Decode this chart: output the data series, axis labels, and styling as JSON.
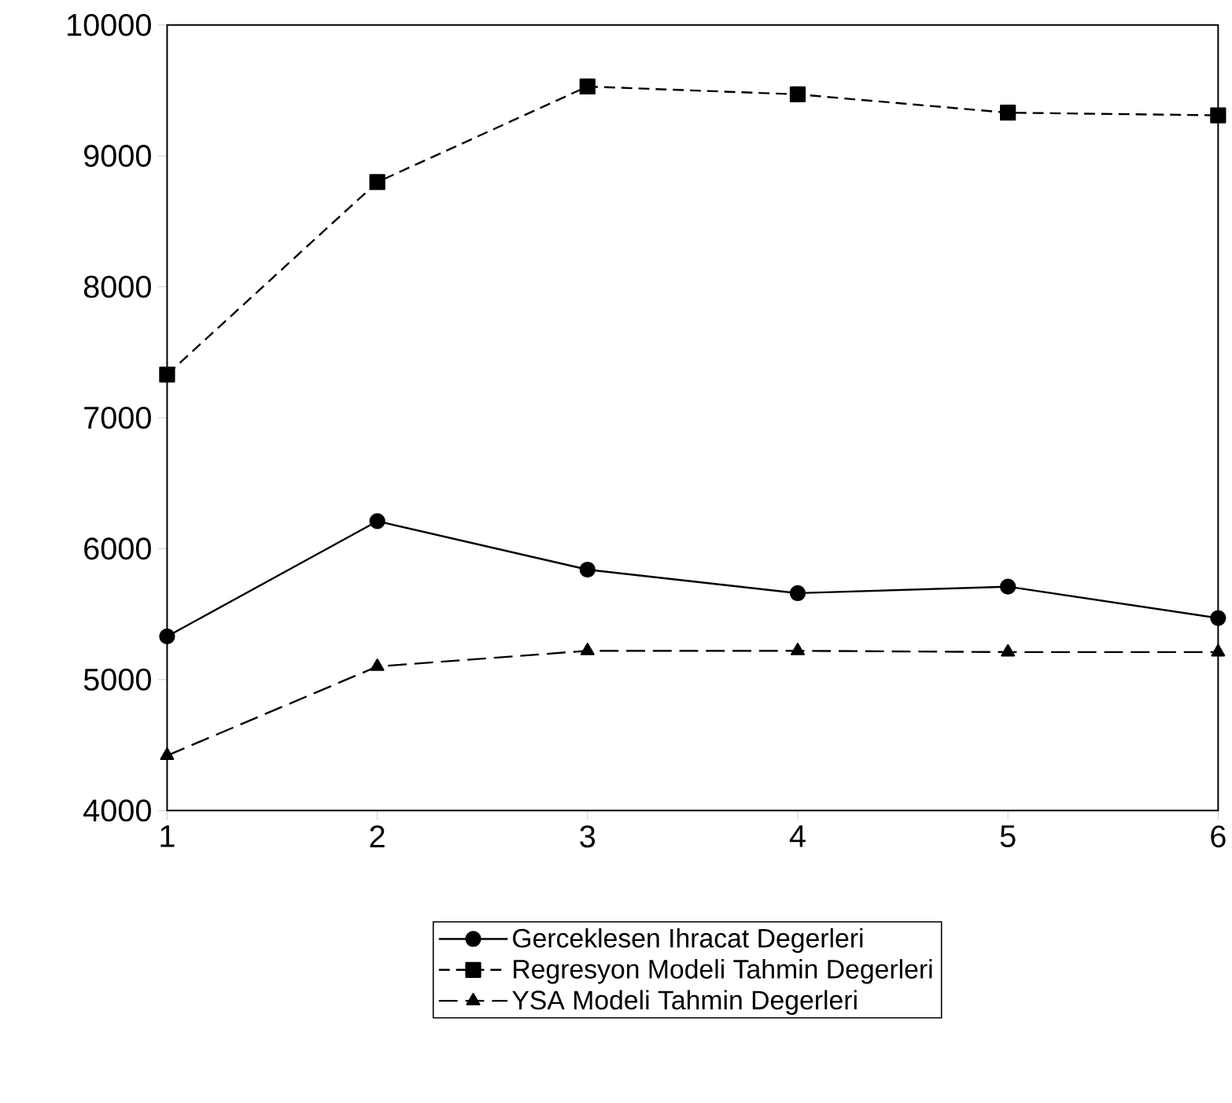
{
  "chart_data": {
    "type": "line",
    "x": [
      1,
      2,
      3,
      4,
      5,
      6
    ],
    "series": [
      {
        "name": "Gerceklesen Ihracat Degerleri",
        "color": "#000000",
        "marker": "circle",
        "line_style": "solid",
        "values": [
          5330,
          6210,
          5840,
          5660,
          5710,
          5470
        ]
      },
      {
        "name": "Regresyon Modeli Tahmin Degerleri",
        "color": "#000000",
        "marker": "square",
        "line_style": "dashed",
        "values": [
          7330,
          8800,
          9530,
          9470,
          9330,
          9310
        ]
      },
      {
        "name": "YSA Modeli Tahmin Degerleri",
        "color": "#000000",
        "marker": "triangle",
        "line_style": "dashed",
        "values": [
          4420,
          5100,
          5220,
          5220,
          5210,
          5210
        ]
      }
    ],
    "xlim": [
      1,
      6
    ],
    "xticks": [
      1,
      2,
      3,
      4,
      5,
      6
    ],
    "ylim": [
      4000,
      10000
    ],
    "yticks": [
      4000,
      5000,
      6000,
      7000,
      8000,
      9000,
      10000
    ],
    "grid": false,
    "legend": "bottom"
  }
}
